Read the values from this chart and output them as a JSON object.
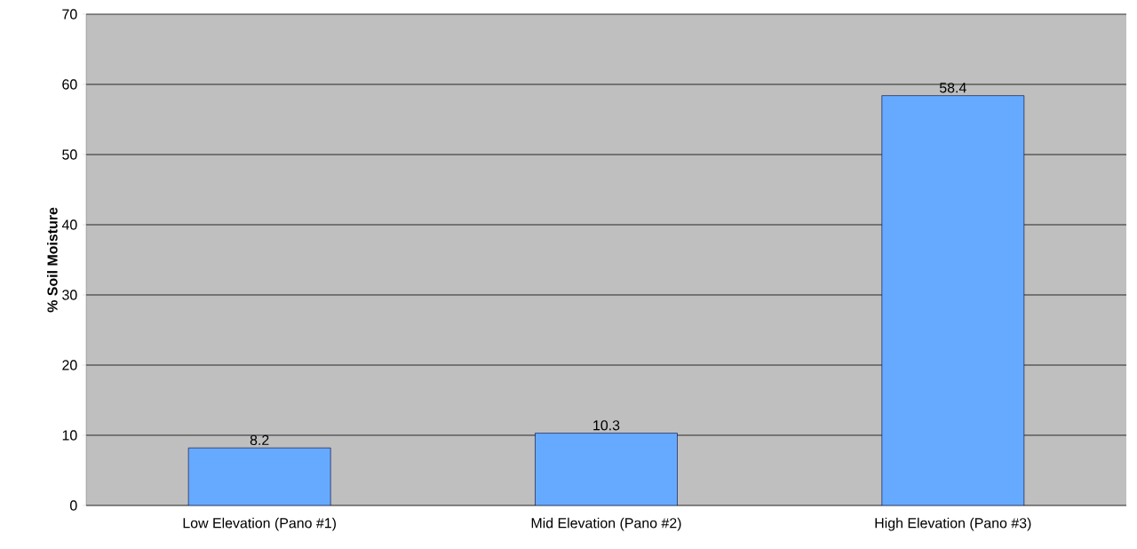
{
  "chart_data": {
    "type": "bar",
    "ylabel": "% Soil Moisture",
    "categories": [
      "Low Elevation (Pano #1)",
      "Mid Elevation (Pano #2)",
      "High Elevation (Pano #3)"
    ],
    "values": [
      8.2,
      10.3,
      58.4
    ],
    "color": "#66aaff",
    "ylim": [
      0,
      70
    ],
    "yticks": [
      0,
      10,
      20,
      30,
      40,
      50,
      60,
      70
    ],
    "grid": "y",
    "data_labels": true
  }
}
